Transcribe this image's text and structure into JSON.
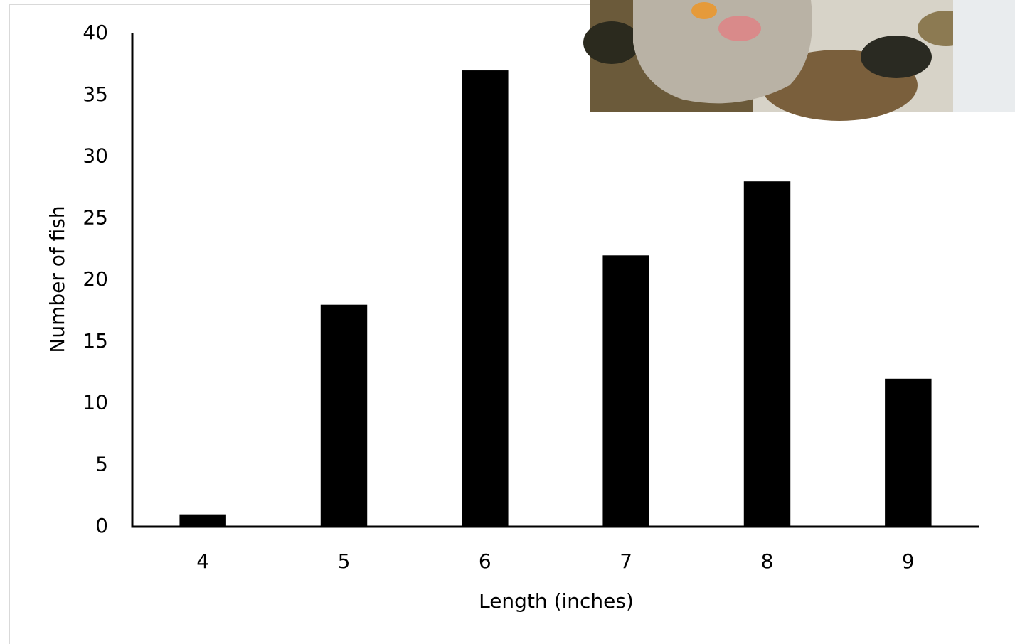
{
  "chart_data": {
    "type": "bar",
    "x_label": "Length (inches)",
    "y_label": "Number of fish",
    "categories": [
      "4",
      "5",
      "6",
      "7",
      "8",
      "9"
    ],
    "values": [
      1,
      18,
      37,
      22,
      28,
      12
    ],
    "color": "#000000",
    "ylim": [
      0,
      40
    ],
    "yticks": [
      0,
      5,
      10,
      15,
      20,
      25,
      30,
      35,
      40
    ],
    "grid": false
  }
}
